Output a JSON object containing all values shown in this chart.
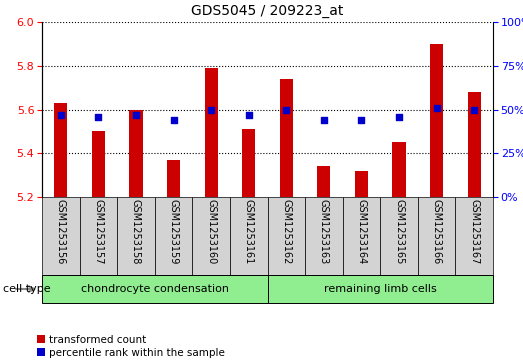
{
  "title": "GDS5045 / 209223_at",
  "samples": [
    "GSM1253156",
    "GSM1253157",
    "GSM1253158",
    "GSM1253159",
    "GSM1253160",
    "GSM1253161",
    "GSM1253162",
    "GSM1253163",
    "GSM1253164",
    "GSM1253165",
    "GSM1253166",
    "GSM1253167"
  ],
  "red_values": [
    5.63,
    5.5,
    5.6,
    5.37,
    5.79,
    5.51,
    5.74,
    5.34,
    5.32,
    5.45,
    5.9,
    5.68
  ],
  "blue_values": [
    47,
    46,
    47,
    44,
    50,
    47,
    50,
    44,
    44,
    46,
    51,
    50
  ],
  "ylim_left": [
    5.2,
    6.0
  ],
  "ylim_right": [
    0,
    100
  ],
  "yticks_left": [
    5.2,
    5.4,
    5.6,
    5.8,
    6.0
  ],
  "yticks_right": [
    0,
    25,
    50,
    75,
    100
  ],
  "bar_color": "#cc0000",
  "dot_color": "#0000cc",
  "bar_width": 0.35,
  "base_value": 5.2,
  "group1_label": "chondrocyte condensation",
  "group2_label": "remaining limb cells",
  "group1_count": 6,
  "group2_count": 6,
  "cell_type_label": "cell type",
  "legend1": "transformed count",
  "legend2": "percentile rank within the sample",
  "title_fontsize": 10,
  "tick_fontsize": 8,
  "label_fontsize": 7,
  "group_fontsize": 8,
  "legend_fontsize": 7.5,
  "bg_color": "#d3d3d3",
  "group_bg_color": "#90ee90",
  "plot_bg": "#ffffff"
}
